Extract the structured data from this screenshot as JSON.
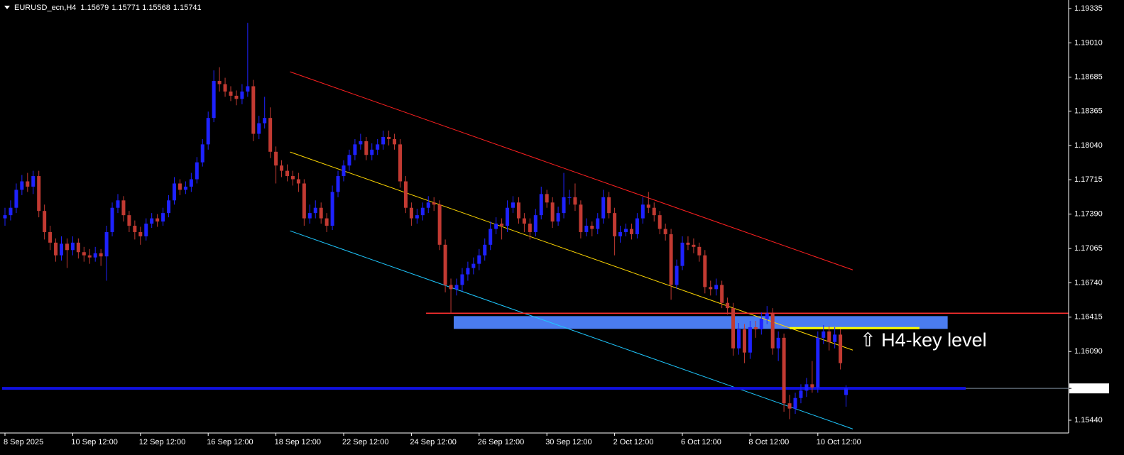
{
  "chart_data": {
    "type": "candlestick",
    "symbol": "EURUSD_ecn,H4",
    "bull_color": "#1e22ff",
    "bear_color": "#c23a32",
    "ylim": [
      1.15319,
      1.19416
    ],
    "xlim": [
      0,
      189
    ],
    "yticks": [
      1.19335,
      {
        "value": 1.1901,
        "label": "1.19010"
      },
      1.18685,
      1.18365,
      {
        "value": 1.1804,
        "label": "1.18040"
      },
      1.17715,
      {
        "value": 1.1739,
        "label": "1.17390"
      },
      1.17065,
      {
        "value": 1.1674,
        "label": "1.16740"
      },
      1.16415,
      {
        "value": 1.1609,
        "label": "1.16090"
      },
      {
        "value": 1.1544,
        "label": "1.15440"
      }
    ],
    "xticks": [
      {
        "value": 0,
        "label": "8 Sep 2025"
      },
      {
        "value": 12,
        "label": "10 Sep 12:00"
      },
      {
        "value": 24,
        "label": "12 Sep 12:00"
      },
      {
        "value": 36,
        "label": "16 Sep 12:00"
      },
      {
        "value": 48,
        "label": "18 Sep 12:00"
      },
      {
        "value": 60,
        "label": "22 Sep 12:00"
      },
      {
        "value": 72,
        "label": "24 Sep 12:00"
      },
      {
        "value": 84,
        "label": "26 Sep 12:00"
      },
      {
        "value": 96,
        "label": "30 Sep 12:00"
      },
      {
        "value": 108,
        "label": "2 Oct 12:00"
      },
      {
        "value": 120,
        "label": "6 Oct 12:00"
      },
      {
        "value": 132,
        "label": "8 Oct 12:00"
      },
      {
        "value": 144,
        "label": "10 Oct 12:00"
      }
    ],
    "candles": [
      [
        1.1735,
        1.1745,
        1.1728,
        1.1738
      ],
      [
        1.1738,
        1.1752,
        1.1733,
        1.1745
      ],
      [
        1.1745,
        1.1768,
        1.174,
        1.1762
      ],
      [
        1.1762,
        1.1776,
        1.1757,
        1.177
      ],
      [
        1.177,
        1.1778,
        1.176,
        1.1765
      ],
      [
        1.1765,
        1.178,
        1.1758,
        1.1775
      ],
      [
        1.1775,
        1.178,
        1.1736,
        1.1742
      ],
      [
        1.1742,
        1.1748,
        1.1715,
        1.1722
      ],
      [
        1.1722,
        1.1728,
        1.1705,
        1.1712
      ],
      [
        1.1712,
        1.1716,
        1.1694,
        1.17
      ],
      [
        1.17,
        1.1718,
        1.1695,
        1.1711
      ],
      [
        1.1711,
        1.1716,
        1.1688,
        1.1705
      ],
      [
        1.1705,
        1.1718,
        1.17,
        1.1712
      ],
      [
        1.1712,
        1.1716,
        1.1697,
        1.1703
      ],
      [
        1.1703,
        1.1708,
        1.1694,
        1.17
      ],
      [
        1.17,
        1.1706,
        1.1692,
        1.1698
      ],
      [
        1.1698,
        1.1708,
        1.1694,
        1.1702
      ],
      [
        1.1702,
        1.1706,
        1.169,
        1.1699
      ],
      [
        1.1699,
        1.1728,
        1.1676,
        1.1722
      ],
      [
        1.1722,
        1.175,
        1.1718,
        1.1745
      ],
      [
        1.1745,
        1.1758,
        1.174,
        1.1752
      ],
      [
        1.1752,
        1.1756,
        1.1732,
        1.1738
      ],
      [
        1.1738,
        1.1742,
        1.1722,
        1.1728
      ],
      [
        1.1728,
        1.1733,
        1.1715,
        1.1722
      ],
      [
        1.1722,
        1.1727,
        1.171,
        1.1718
      ],
      [
        1.1718,
        1.1735,
        1.1714,
        1.173
      ],
      [
        1.173,
        1.174,
        1.1726,
        1.1735
      ],
      [
        1.1735,
        1.1739,
        1.1727,
        1.1732
      ],
      [
        1.1732,
        1.1745,
        1.1728,
        1.174
      ],
      [
        1.174,
        1.1757,
        1.1736,
        1.1752
      ],
      [
        1.1752,
        1.1774,
        1.1748,
        1.1768
      ],
      [
        1.1768,
        1.1772,
        1.1757,
        1.1762
      ],
      [
        1.1762,
        1.177,
        1.1758,
        1.1765
      ],
      [
        1.1765,
        1.1778,
        1.176,
        1.1772
      ],
      [
        1.1772,
        1.1793,
        1.1768,
        1.1788
      ],
      [
        1.1788,
        1.181,
        1.1784,
        1.1805
      ],
      [
        1.1805,
        1.1836,
        1.18,
        1.183
      ],
      [
        1.183,
        1.1875,
        1.1826,
        1.1865
      ],
      [
        1.1865,
        1.1878,
        1.1855,
        1.1862
      ],
      [
        1.1862,
        1.1868,
        1.185,
        1.1855
      ],
      [
        1.1855,
        1.186,
        1.1846,
        1.1851
      ],
      [
        1.1851,
        1.1856,
        1.1842,
        1.1848
      ],
      [
        1.1848,
        1.1862,
        1.1843,
        1.1855
      ],
      [
        1.1855,
        1.192,
        1.185,
        1.186
      ],
      [
        1.186,
        1.1866,
        1.1808,
        1.1815
      ],
      [
        1.1815,
        1.1832,
        1.181,
        1.1825
      ],
      [
        1.1825,
        1.185,
        1.182,
        1.183
      ],
      [
        1.183,
        1.184,
        1.1792,
        1.1798
      ],
      [
        1.1798,
        1.1803,
        1.1768,
        1.1785
      ],
      [
        1.1785,
        1.179,
        1.1774,
        1.178
      ],
      [
        1.178,
        1.1786,
        1.177,
        1.1775
      ],
      [
        1.1775,
        1.178,
        1.1766,
        1.1772
      ],
      [
        1.1772,
        1.1778,
        1.176,
        1.1768
      ],
      [
        1.1768,
        1.1772,
        1.1728,
        1.1735
      ],
      [
        1.1735,
        1.1748,
        1.173,
        1.174
      ],
      [
        1.174,
        1.1752,
        1.1735,
        1.1745
      ],
      [
        1.1745,
        1.175,
        1.173,
        1.1735
      ],
      [
        1.1735,
        1.174,
        1.1722,
        1.1728
      ],
      [
        1.1728,
        1.1766,
        1.1724,
        1.176
      ],
      [
        1.176,
        1.178,
        1.1755,
        1.1775
      ],
      [
        1.1775,
        1.179,
        1.177,
        1.1785
      ],
      [
        1.1785,
        1.18,
        1.178,
        1.1795
      ],
      [
        1.1795,
        1.181,
        1.179,
        1.1805
      ],
      [
        1.1805,
        1.1815,
        1.18,
        1.1808
      ],
      [
        1.1808,
        1.1812,
        1.179,
        1.1795
      ],
      [
        1.1795,
        1.1806,
        1.179,
        1.18
      ],
      [
        1.18,
        1.181,
        1.1795,
        1.1805
      ],
      [
        1.1805,
        1.1818,
        1.18,
        1.1812
      ],
      [
        1.1812,
        1.1818,
        1.1804,
        1.181
      ],
      [
        1.181,
        1.1815,
        1.18,
        1.1805
      ],
      [
        1.1805,
        1.181,
        1.1764,
        1.177
      ],
      [
        1.177,
        1.1775,
        1.174,
        1.1745
      ],
      [
        1.1745,
        1.175,
        1.1728,
        1.1735
      ],
      [
        1.1735,
        1.1744,
        1.173,
        1.1738
      ],
      [
        1.1738,
        1.175,
        1.1733,
        1.1745
      ],
      [
        1.1745,
        1.1756,
        1.174,
        1.175
      ],
      [
        1.175,
        1.1755,
        1.1742,
        1.1748
      ],
      [
        1.1748,
        1.1752,
        1.1705,
        1.171
      ],
      [
        1.171,
        1.1715,
        1.1665,
        1.1672
      ],
      [
        1.1672,
        1.1678,
        1.1645,
        1.1668
      ],
      [
        1.1668,
        1.1678,
        1.1662,
        1.1672
      ],
      [
        1.1672,
        1.1688,
        1.1666,
        1.1682
      ],
      [
        1.1682,
        1.1694,
        1.1676,
        1.1688
      ],
      [
        1.1688,
        1.1698,
        1.1682,
        1.1692
      ],
      [
        1.1692,
        1.1706,
        1.1686,
        1.17
      ],
      [
        1.17,
        1.1716,
        1.1695,
        1.171
      ],
      [
        1.171,
        1.1732,
        1.1705,
        1.1725
      ],
      [
        1.1725,
        1.1736,
        1.172,
        1.173
      ],
      [
        1.173,
        1.1735,
        1.1715,
        1.1728
      ],
      [
        1.1728,
        1.1752,
        1.1722,
        1.1745
      ],
      [
        1.1745,
        1.1756,
        1.174,
        1.175
      ],
      [
        1.175,
        1.1755,
        1.173,
        1.1735
      ],
      [
        1.1735,
        1.174,
        1.1722,
        1.173
      ],
      [
        1.173,
        1.1735,
        1.1715,
        1.1722
      ],
      [
        1.1722,
        1.1744,
        1.1718,
        1.1738
      ],
      [
        1.1738,
        1.1765,
        1.1734,
        1.1758
      ],
      [
        1.1758,
        1.1762,
        1.1745,
        1.175
      ],
      [
        1.175,
        1.1755,
        1.1726,
        1.1732
      ],
      [
        1.1732,
        1.1746,
        1.1728,
        1.174
      ],
      [
        1.174,
        1.1778,
        1.1735,
        1.1755
      ],
      [
        1.1755,
        1.1762,
        1.1748,
        1.1755
      ],
      [
        1.1755,
        1.1768,
        1.1742,
        1.1748
      ],
      [
        1.1748,
        1.1752,
        1.1716,
        1.1722
      ],
      [
        1.1722,
        1.1735,
        1.1718,
        1.1728
      ],
      [
        1.1728,
        1.1732,
        1.1718,
        1.1725
      ],
      [
        1.1725,
        1.174,
        1.172,
        1.1735
      ],
      [
        1.1735,
        1.1762,
        1.173,
        1.1755
      ],
      [
        1.1755,
        1.176,
        1.1735,
        1.174
      ],
      [
        1.174,
        1.1745,
        1.17,
        1.1718
      ],
      [
        1.1718,
        1.1728,
        1.1712,
        1.1722
      ],
      [
        1.1722,
        1.173,
        1.1718,
        1.1725
      ],
      [
        1.1725,
        1.173,
        1.1715,
        1.172
      ],
      [
        1.172,
        1.174,
        1.1716,
        1.1735
      ],
      [
        1.1735,
        1.1755,
        1.173,
        1.1748
      ],
      [
        1.1748,
        1.176,
        1.174,
        1.1745
      ],
      [
        1.1745,
        1.175,
        1.1732,
        1.1738
      ],
      [
        1.1738,
        1.1742,
        1.172,
        1.1725
      ],
      [
        1.1725,
        1.173,
        1.1714,
        1.172
      ],
      [
        1.172,
        1.1725,
        1.1658,
        1.1672
      ],
      [
        1.1672,
        1.1696,
        1.1668,
        1.169
      ],
      [
        1.169,
        1.1718,
        1.1686,
        1.1712
      ],
      [
        1.1712,
        1.1718,
        1.1705,
        1.171
      ],
      [
        1.171,
        1.1716,
        1.1702,
        1.1708
      ],
      [
        1.1708,
        1.1712,
        1.1694,
        1.17
      ],
      [
        1.17,
        1.1705,
        1.1664,
        1.167
      ],
      [
        1.167,
        1.1676,
        1.1662,
        1.1668
      ],
      [
        1.1668,
        1.1678,
        1.1662,
        1.1672
      ],
      [
        1.1672,
        1.1676,
        1.165,
        1.1655
      ],
      [
        1.1655,
        1.166,
        1.1644,
        1.165
      ],
      [
        1.165,
        1.1655,
        1.1605,
        1.1612
      ],
      [
        1.1612,
        1.1636,
        1.1606,
        1.163
      ],
      [
        1.163,
        1.1635,
        1.1598,
        1.1608
      ],
      [
        1.1608,
        1.1638,
        1.1602,
        1.1632
      ],
      [
        1.1632,
        1.1638,
        1.1622,
        1.163
      ],
      [
        1.163,
        1.1646,
        1.1625,
        1.164
      ],
      [
        1.164,
        1.1652,
        1.1635,
        1.1645
      ],
      [
        1.1645,
        1.165,
        1.1606,
        1.1612
      ],
      [
        1.1612,
        1.1628,
        1.16,
        1.1622
      ],
      [
        1.1622,
        1.1626,
        1.1552,
        1.156
      ],
      [
        1.156,
        1.1568,
        1.1545,
        1.1555
      ],
      [
        1.1555,
        1.157,
        1.155,
        1.1565
      ],
      [
        1.1565,
        1.1578,
        1.156,
        1.1572
      ],
      [
        1.1572,
        1.1584,
        1.1566,
        1.1578
      ],
      [
        1.1578,
        1.16,
        1.157,
        1.1575
      ],
      [
        1.1575,
        1.1628,
        1.157,
        1.1622
      ],
      [
        1.1622,
        1.1634,
        1.1616,
        1.1628
      ],
      [
        1.1628,
        1.1633,
        1.161,
        1.1618
      ],
      [
        1.1618,
        1.1632,
        1.1612,
        1.1625
      ],
      [
        1.1625,
        1.163,
        1.1592,
        1.1598
      ],
      [
        1.15679,
        1.15771,
        1.15568,
        1.15741
      ]
    ],
    "channel": [
      {
        "color": "#ff2020",
        "x": [
          50.5,
          150.2
        ],
        "y": [
          1.18737,
          1.16862
        ]
      },
      {
        "color": "#ffd700",
        "x": [
          50.5,
          150.2
        ],
        "y": [
          1.17978,
          1.16103
        ]
      },
      {
        "color": "#1ec8ff",
        "x": [
          50.5,
          150.2
        ],
        "y": [
          1.17232,
          1.15357
        ]
      }
    ],
    "level": {
      "color": "#ff3030",
      "x": [
        74.6,
        189
      ],
      "y": 1.16452
    },
    "zone": {
      "color": "#4a7cf0",
      "x": [
        79.5,
        167
      ],
      "y": [
        1.16304,
        1.16425
      ]
    },
    "key_line": {
      "color": "#ffff00",
      "x": [
        139,
        162
      ],
      "y": 1.16311
    },
    "price_line_color": "#1010e0",
    "annotation": {
      "text": "⇧ H4-key level",
      "color": "#ffff00"
    }
  }
}
